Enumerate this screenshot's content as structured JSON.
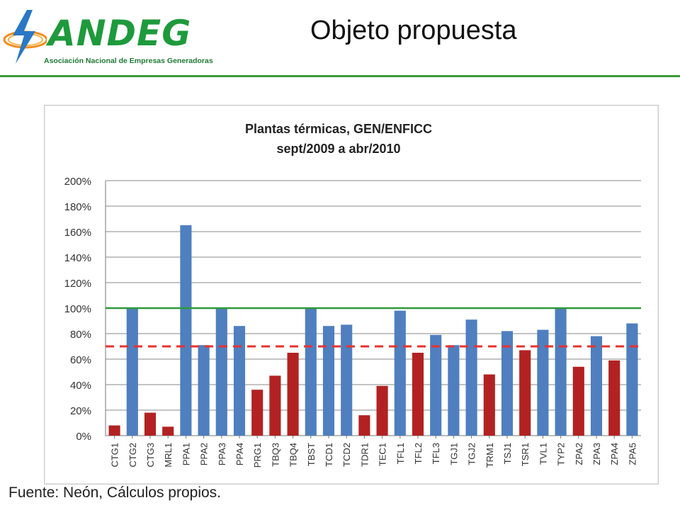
{
  "header": {
    "logo_text": "ANDEG",
    "logo_subtitle": "Asociación Nacional de Empresas Generadoras",
    "slide_title": "Objeto propuesta"
  },
  "footer": {
    "source": "Fuente: Neón, Cálculos propios."
  },
  "colors": {
    "blue_bar": "#4f7fbf",
    "red_bar": "#b22222",
    "reference_line": "#2e9a3a",
    "threshold_line": "#e8322f",
    "grid": "#8a8a8a"
  },
  "chart_data": {
    "type": "bar",
    "title": "Plantas térmicas, GEN/ENFICC",
    "subtitle": "sept/2009 a abr/2010",
    "xlabel": "",
    "ylabel": "",
    "ylim": [
      0,
      200
    ],
    "yticks": [
      "0%",
      "20%",
      "40%",
      "60%",
      "80%",
      "100%",
      "120%",
      "140%",
      "160%",
      "180%",
      "200%"
    ],
    "grid": true,
    "categories": [
      "CTG1",
      "CTG2",
      "CTG3",
      "MRL1",
      "PPA1",
      "PPA2",
      "PPA3",
      "PPA4",
      "PRG1",
      "TBQ3",
      "TBQ4",
      "TBST",
      "TCD1",
      "TCD2",
      "TDR1",
      "TEC1",
      "TFL1",
      "TFL2",
      "TFL3",
      "TGJ1",
      "TGJ2",
      "TRM1",
      "TSJ1",
      "TSR1",
      "TVL1",
      "TYP2",
      "ZPA2",
      "ZPA3",
      "ZPA4",
      "ZPA5"
    ],
    "values": [
      8,
      100,
      18,
      7,
      165,
      71,
      100,
      86,
      36,
      47,
      65,
      100,
      86,
      87,
      16,
      39,
      98,
      65,
      79,
      71,
      91,
      48,
      82,
      67,
      83,
      100,
      54,
      78,
      59,
      88
    ],
    "bar_colors": [
      "red",
      "blue",
      "red",
      "red",
      "blue",
      "blue",
      "blue",
      "blue",
      "red",
      "red",
      "red",
      "blue",
      "blue",
      "blue",
      "red",
      "red",
      "blue",
      "red",
      "blue",
      "blue",
      "blue",
      "red",
      "blue",
      "red",
      "blue",
      "blue",
      "red",
      "blue",
      "red",
      "blue"
    ],
    "reference_lines": [
      {
        "value": 100,
        "style": "solid",
        "color": "green"
      },
      {
        "value": 70,
        "style": "dashed",
        "color": "red"
      }
    ]
  }
}
